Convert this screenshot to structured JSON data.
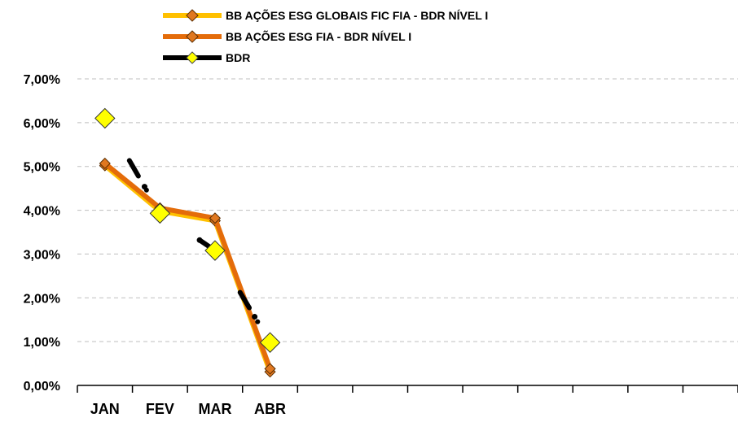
{
  "chart_data": {
    "type": "line",
    "categories": [
      "JAN",
      "FEV",
      "MAR",
      "ABR"
    ],
    "ylim": [
      0,
      7
    ],
    "y_ticks": [
      "0,00%",
      "1,00%",
      "2,00%",
      "3,00%",
      "4,00%",
      "5,00%",
      "6,00%",
      "7,00%"
    ],
    "grid": true,
    "legend_position": "top-center",
    "total_x_slots": 12,
    "series": [
      {
        "name": "BB AÇÕES ESG GLOBAIS FIC FIA - BDR NÍVEL I",
        "values": [
          5.02,
          3.98,
          3.76,
          0.31
        ],
        "color": "#FFC000",
        "marker_color": "#E07820"
      },
      {
        "name": "BB AÇÕES ESG FIA - BDR NÍVEL I",
        "values": [
          5.07,
          4.05,
          3.82,
          0.38
        ],
        "color": "#E46C0A",
        "marker_color": "#E07820"
      },
      {
        "name": "BDR",
        "values": [
          6.1,
          3.93,
          3.08,
          0.98
        ],
        "color": "#000000",
        "marker_color": "#FFFF00",
        "line_style": "dash-dot"
      }
    ]
  }
}
